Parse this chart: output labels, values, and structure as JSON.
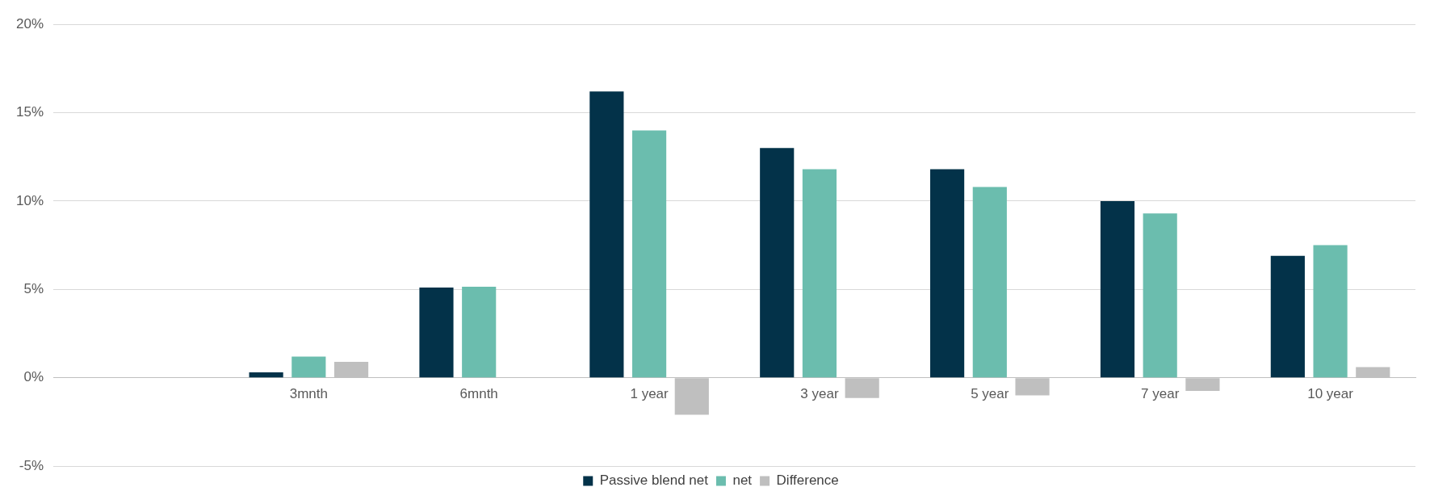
{
  "chart_data": {
    "type": "bar",
    "categories": [
      null,
      "3mnth",
      "6mnth",
      "1 year",
      "3 year",
      "5 year",
      "7 year",
      "10 year"
    ],
    "series": [
      {
        "name": "Passive blend net",
        "color": "#033249",
        "values": [
          null,
          0.3,
          5.1,
          16.2,
          13.0,
          11.8,
          10.0,
          6.9
        ]
      },
      {
        "name": "net",
        "color": "#6bbdae",
        "values": [
          null,
          1.2,
          5.15,
          14.0,
          11.8,
          10.8,
          9.3,
          7.5
        ]
      },
      {
        "name": "Difference",
        "color": "#bfbfbf",
        "values": [
          null,
          0.9,
          null,
          -2.1,
          -1.15,
          -1.0,
          -0.75,
          0.6
        ]
      }
    ],
    "ylim": [
      -5,
      20
    ],
    "yticks": [
      {
        "value": -5,
        "label": "-5%"
      },
      {
        "value": 0,
        "label": "0%"
      },
      {
        "value": 5,
        "label": "5%"
      },
      {
        "value": 10,
        "label": "10%"
      },
      {
        "value": 15,
        "label": "15%"
      },
      {
        "value": 20,
        "label": "20%"
      }
    ],
    "grid": "y",
    "legend": "bottom"
  }
}
